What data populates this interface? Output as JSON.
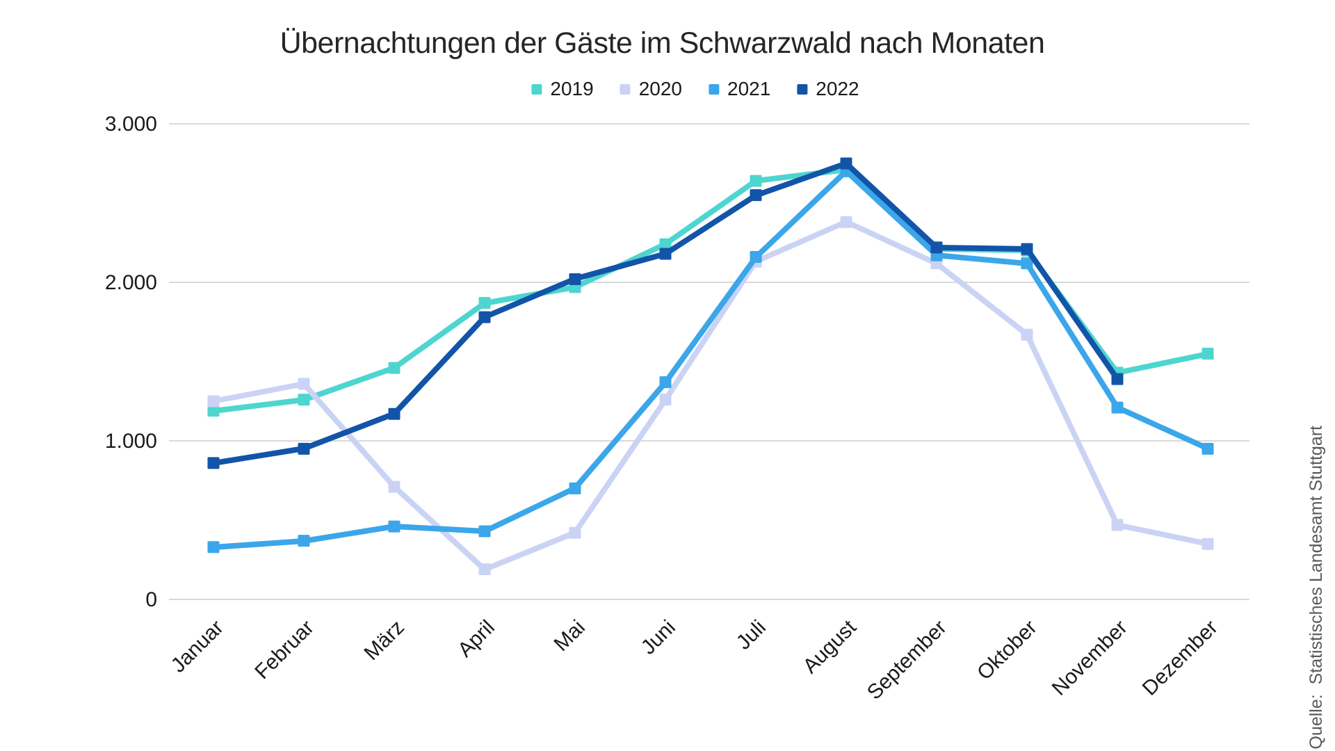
{
  "chart_data": {
    "type": "line",
    "title": "Übernachtungen der Gäste im Schwarzwald nach Monaten",
    "categories": [
      "Januar",
      "Februar",
      "März",
      "April",
      "Mai",
      "Juni",
      "Juli",
      "August",
      "September",
      "Oktober",
      "November",
      "Dezember"
    ],
    "series": [
      {
        "name": "2019",
        "color": "#4ED5CF",
        "values": [
          1190,
          1260,
          1460,
          1870,
          1970,
          2240,
          2640,
          2710,
          2210,
          2200,
          1430,
          1550
        ]
      },
      {
        "name": "2020",
        "color": "#CBD3F5",
        "values": [
          1250,
          1360,
          710,
          190,
          420,
          1260,
          2130,
          2380,
          2120,
          1670,
          470,
          350
        ]
      },
      {
        "name": "2021",
        "color": "#3BA6E9",
        "values": [
          330,
          370,
          460,
          430,
          700,
          1370,
          2160,
          2700,
          2170,
          2120,
          1210,
          950
        ]
      },
      {
        "name": "2022",
        "color": "#1254A8",
        "values": [
          860,
          950,
          1170,
          1780,
          2020,
          2180,
          2550,
          2750,
          2220,
          2210,
          1390,
          null
        ]
      }
    ],
    "y_ticks": [
      {
        "value": 0,
        "label": "0"
      },
      {
        "value": 1000,
        "label": "1.000"
      },
      {
        "value": 2000,
        "label": "2.000"
      },
      {
        "value": 3000,
        "label": "3.000"
      }
    ],
    "ylim": [
      0,
      3000
    ],
    "grid": "horizontal",
    "legend_position": "top"
  },
  "source": "Quelle:  Statistisches Landesamt Stuttgart",
  "colors": {
    "grid": "#D9D9D9",
    "axis_text": "#1a1a1a",
    "title_text": "#262626",
    "source_text": "#595959",
    "background": "#FFFFFF"
  }
}
